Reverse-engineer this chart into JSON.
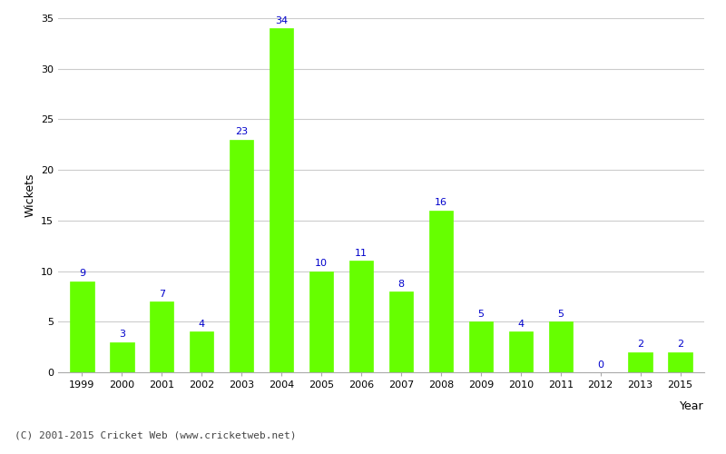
{
  "years": [
    "1999",
    "2000",
    "2001",
    "2002",
    "2003",
    "2004",
    "2005",
    "2006",
    "2007",
    "2008",
    "2009",
    "2010",
    "2011",
    "2012",
    "2013",
    "2015"
  ],
  "values": [
    9,
    3,
    7,
    4,
    23,
    34,
    10,
    11,
    8,
    16,
    5,
    4,
    5,
    0,
    2,
    2
  ],
  "bar_color": "#66ff00",
  "bar_edge_color": "#66ff00",
  "label_color": "#0000cc",
  "xlabel": "Year",
  "ylabel": "Wickets",
  "ylim": [
    0,
    35
  ],
  "yticks": [
    0,
    5,
    10,
    15,
    20,
    25,
    30,
    35
  ],
  "grid_color": "#cccccc",
  "background_color": "#ffffff",
  "caption": "(C) 2001-2015 Cricket Web (www.cricketweb.net)",
  "caption_color": "#444444",
  "label_fontsize": 8,
  "axis_label_fontsize": 9,
  "tick_fontsize": 8,
  "caption_fontsize": 8,
  "bar_width": 0.6
}
